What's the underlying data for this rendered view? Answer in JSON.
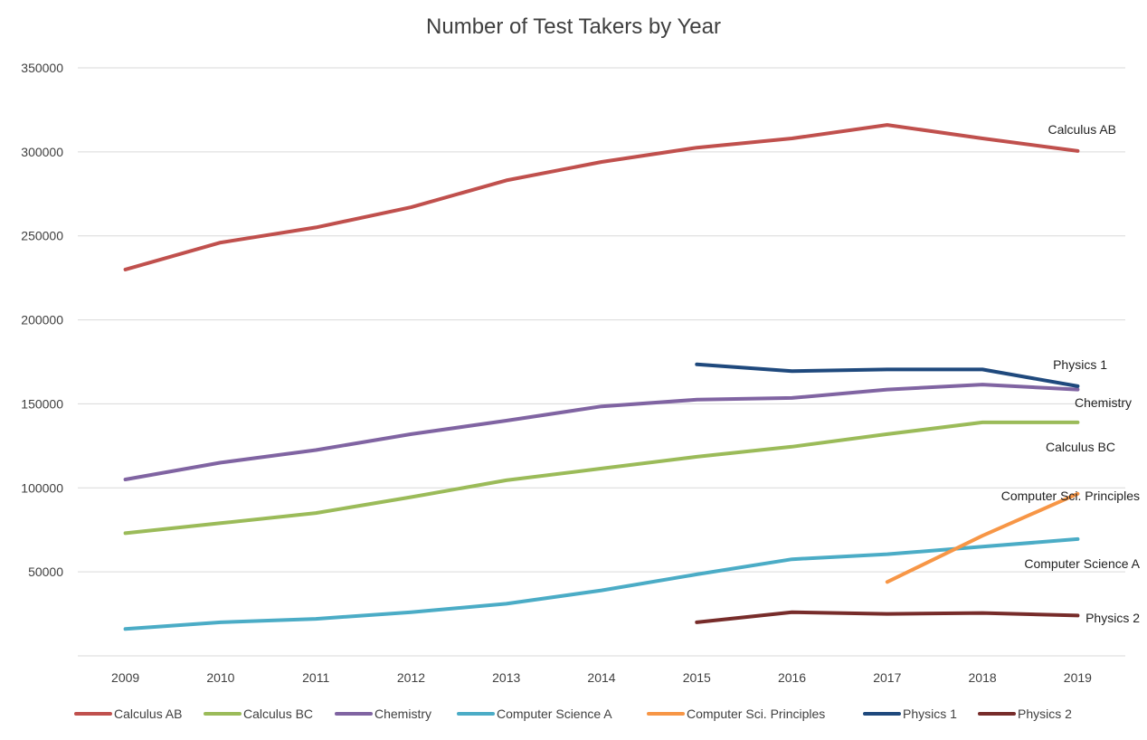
{
  "chart_data": {
    "type": "line",
    "title": "Number of Test Takers by Year",
    "xlabel": "",
    "ylabel": "",
    "categories": [
      "2009",
      "2010",
      "2011",
      "2012",
      "2013",
      "2014",
      "2015",
      "2016",
      "2017",
      "2018",
      "2019"
    ],
    "ylim": [
      0,
      350000
    ],
    "yticks": [
      50000,
      100000,
      150000,
      200000,
      250000,
      300000,
      350000
    ],
    "grid": true,
    "legend_position": "bottom",
    "series": [
      {
        "name": "Calculus AB",
        "color": "#c0504d",
        "values": [
          230000,
          246000,
          255000,
          267000,
          283000,
          294000,
          302500,
          308000,
          316000,
          308000,
          300500
        ]
      },
      {
        "name": "Calculus BC",
        "color": "#9bbb59",
        "values": [
          73000,
          79000,
          85000,
          94500,
          104500,
          111500,
          118500,
          124500,
          132000,
          139000,
          139000
        ]
      },
      {
        "name": "Chemistry",
        "color": "#8064a2",
        "values": [
          105000,
          115000,
          122500,
          132000,
          140000,
          148500,
          152500,
          153500,
          158500,
          161500,
          158500
        ]
      },
      {
        "name": "Computer Science A",
        "color": "#4bacc6",
        "values": [
          16000,
          20000,
          22000,
          26000,
          31000,
          39000,
          48500,
          57500,
          60500,
          65000,
          69500
        ]
      },
      {
        "name": "Computer Sci. Principles",
        "color": "#f79646",
        "values": [
          null,
          null,
          null,
          null,
          null,
          null,
          null,
          null,
          44000,
          71500,
          96500
        ]
      },
      {
        "name": "Physics 1",
        "color": "#1f497d",
        "values": [
          null,
          null,
          null,
          null,
          null,
          null,
          173500,
          169500,
          170500,
          170500,
          160500
        ]
      },
      {
        "name": "Physics 2",
        "color": "#772c2a",
        "values": [
          null,
          null,
          null,
          null,
          null,
          null,
          20000,
          26000,
          25000,
          25500,
          24000
        ]
      }
    ],
    "end_labels": [
      "Calculus AB",
      "Physics 1",
      "Chemistry",
      "Calculus BC",
      "Computer Sci. Principles",
      "Computer Science A",
      "Physics 2"
    ]
  }
}
